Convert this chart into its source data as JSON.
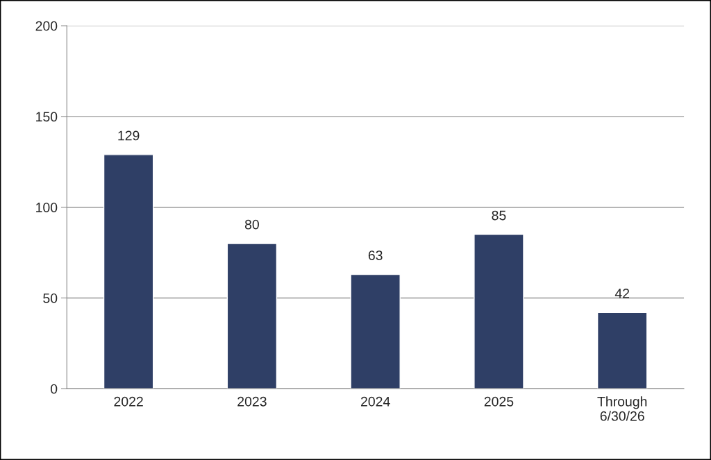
{
  "chart_data": {
    "type": "bar",
    "categories": [
      "2022",
      "2023",
      "2024",
      "2025",
      "Through\n6/30/26"
    ],
    "values": [
      129,
      80,
      63,
      85,
      42
    ],
    "color": "#2f3f66",
    "ylim": [
      0,
      200
    ],
    "yticks": [
      0,
      50,
      100,
      150,
      200
    ],
    "grid": "y",
    "data_labels": true
  }
}
